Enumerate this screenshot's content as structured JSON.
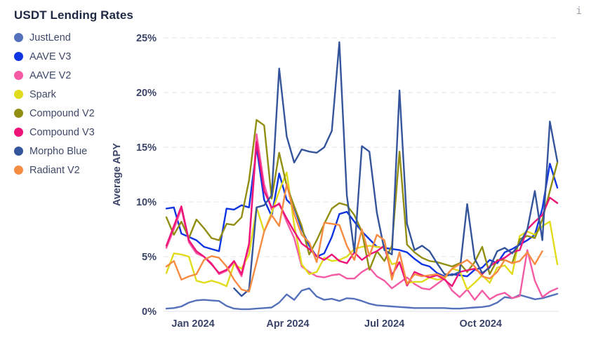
{
  "header": {
    "title": "USDT Lending Rates",
    "info_icon": "i"
  },
  "legend": {
    "items": [
      {
        "label": "JustLend",
        "color": "#5571bb"
      },
      {
        "label": "AAVE V3",
        "color": "#0f35e3"
      },
      {
        "label": "AAVE V2",
        "color": "#f55ba4"
      },
      {
        "label": "Spark",
        "color": "#e0dc1c"
      },
      {
        "label": "Compound V2",
        "color": "#928e12"
      },
      {
        "label": "Compound V3",
        "color": "#ee1379"
      },
      {
        "label": "Morpho Blue",
        "color": "#34549c"
      },
      {
        "label": "Radiant V2",
        "color": "#f68b42"
      }
    ]
  },
  "chart_data": {
    "type": "line",
    "title": "USDT Lending Rates",
    "xlabel": "",
    "ylabel": "Average APY",
    "ylim": [
      0,
      25
    ],
    "grid": "horizontal-dashed",
    "legend_position": "left",
    "x_unit": "weekly (Dec 2023 - Dec 2024)",
    "y_ticks": [
      {
        "value": 25,
        "label": "25%"
      },
      {
        "value": 20,
        "label": "20%"
      },
      {
        "value": 15,
        "label": "15%"
      },
      {
        "value": 10,
        "label": "10%"
      },
      {
        "value": 5,
        "label": "5%"
      },
      {
        "value": 0,
        "label": "0%"
      }
    ],
    "x_ticks": [
      {
        "index": 3.55,
        "label": "Jan 2024"
      },
      {
        "index": 16.15,
        "label": "Apr 2024"
      },
      {
        "index": 29.0,
        "label": "Jul 2024"
      },
      {
        "index": 41.8,
        "label": "Oct 2024"
      }
    ],
    "series": [
      {
        "name": "JustLend",
        "color": "#5571bb",
        "values": [
          0.25,
          0.3,
          0.45,
          0.8,
          1.0,
          1.05,
          1.0,
          0.95,
          0.5,
          0.25,
          0.2,
          0.2,
          0.25,
          0.3,
          0.35,
          0.8,
          1.55,
          1.05,
          1.9,
          2.1,
          1.35,
          1.05,
          1.15,
          0.95,
          1.2,
          1.15,
          0.95,
          0.7,
          0.55,
          0.5,
          0.45,
          0.4,
          0.35,
          0.3,
          0.3,
          0.3,
          0.3,
          0.3,
          0.25,
          0.25,
          0.3,
          0.35,
          0.4,
          0.5,
          0.8,
          1.3,
          1.2,
          1.5,
          1.3,
          1.1,
          1.2,
          1.4,
          1.6
        ]
      },
      {
        "name": "AAVE V3",
        "color": "#0f35e3",
        "values": [
          9.4,
          9.5,
          7.1,
          6.8,
          6.5,
          5.9,
          5.7,
          5.5,
          9.4,
          9.3,
          9.7,
          9.5,
          15.0,
          10.2,
          8.7,
          12.6,
          10.2,
          9.5,
          7.5,
          6.0,
          5.0,
          5.3,
          6.8,
          8.9,
          9.1,
          8.2,
          7.3,
          6.6,
          5.9,
          5.8,
          5.7,
          5.6,
          5.4,
          4.8,
          4.3,
          4.1,
          3.5,
          3.2,
          3.4,
          3.3,
          3.2,
          3.8,
          4.0,
          4.7,
          4.4,
          5.4,
          5.7,
          6.1,
          6.5,
          7.0,
          9.4,
          13.5,
          11.3
        ]
      },
      {
        "name": "AAVE V2",
        "color": "#f55ba4",
        "values": [
          5.8,
          7.5,
          9.4,
          6.3,
          5.3,
          5.0,
          4.4,
          3.4,
          3.7,
          4.5,
          3.2,
          6.0,
          16.2,
          11.6,
          9.3,
          9.9,
          8.2,
          6.7,
          4.1,
          3.6,
          3.2,
          3.1,
          3.3,
          3.4,
          3.0,
          3.0,
          3.6,
          4.0,
          3.2,
          2.8,
          2.1,
          2.6,
          3.1,
          2.5,
          2.1,
          2.0,
          2.5,
          3.0,
          1.9,
          1.3,
          2.0,
          1.05,
          1.9,
          1.1,
          1.5,
          1.7,
          1.2,
          1.4,
          5.6,
          2.8,
          1.3,
          1.8,
          2.1
        ]
      },
      {
        "name": "Spark",
        "color": "#e0dc1c",
        "values": [
          3.5,
          5.3,
          5.2,
          5.0,
          2.8,
          2.6,
          2.8,
          2.6,
          2.3,
          4.3,
          3.9,
          5.2,
          9.5,
          7.3,
          9.0,
          11.0,
          12.7,
          7.9,
          4.3,
          3.4,
          3.6,
          4.9,
          4.6,
          4.7,
          5.0,
          5.7,
          5.9,
          6.0,
          5.9,
          5.8,
          4.3,
          4.5,
          2.6,
          2.7,
          2.7,
          3.1,
          2.9,
          3.0,
          3.9,
          3.7,
          2.0,
          2.6,
          3.3,
          2.6,
          4.0,
          4.2,
          3.4,
          6.9,
          7.3,
          7.0,
          7.8,
          8.2,
          4.3
        ]
      },
      {
        "name": "Compound V2",
        "color": "#928e12",
        "values": [
          8.6,
          7.0,
          8.2,
          6.7,
          8.4,
          7.6,
          6.7,
          6.5,
          8.0,
          7.9,
          8.6,
          12.0,
          17.5,
          17.0,
          10.3,
          14.5,
          11.5,
          9.6,
          7.8,
          5.2,
          6.5,
          8.0,
          9.4,
          9.9,
          9.7,
          8.8,
          7.3,
          3.8,
          5.5,
          4.6,
          6.0,
          14.6,
          6.1,
          5.4,
          4.9,
          4.6,
          4.5,
          4.3,
          4.1,
          4.4,
          3.6,
          4.5,
          5.9,
          3.4,
          4.7,
          4.7,
          4.4,
          6.6,
          6.9,
          6.7,
          8.4,
          11.0,
          13.6
        ]
      },
      {
        "name": "Compound V3",
        "color": "#ee1379",
        "values": [
          6.0,
          7.8,
          9.6,
          6.5,
          5.5,
          5.0,
          4.3,
          3.5,
          3.8,
          4.6,
          3.4,
          6.2,
          15.5,
          11.0,
          9.5,
          9.8,
          8.5,
          7.3,
          6.2,
          5.7,
          5.05,
          4.7,
          5.2,
          4.6,
          4.4,
          5.4,
          4.7,
          5.2,
          5.5,
          6.0,
          3.3,
          4.5,
          2.35,
          3.6,
          3.3,
          3.1,
          3.3,
          2.9,
          2.3,
          3.6,
          3.75,
          3.9,
          3.4,
          4.1,
          4.6,
          4.9,
          5.4,
          5.6,
          7.5,
          8.2,
          8.8,
          10.4,
          9.9
        ]
      },
      {
        "name": "Morpho Blue",
        "color": "#34549c",
        "values": [
          null,
          null,
          null,
          null,
          null,
          null,
          null,
          null,
          null,
          2.1,
          1.4,
          2.0,
          9.5,
          9.7,
          10.6,
          22.2,
          16.0,
          13.6,
          14.8,
          14.6,
          14.5,
          15.0,
          16.5,
          24.6,
          10.6,
          5.4,
          15.1,
          14.6,
          9.0,
          5.6,
          5.2,
          20.2,
          8.0,
          5.6,
          6.0,
          5.5,
          4.4,
          3.4,
          3.3,
          3.6,
          9.8,
          4.8,
          3.5,
          4.0,
          5.5,
          5.8,
          5.3,
          6.2,
          7.5,
          11.0,
          6.5,
          17.35,
          13.7
        ]
      },
      {
        "name": "Radiant V2",
        "color": "#f68b42",
        "values": [
          4.1,
          4.6,
          2.9,
          3.2,
          3.4,
          4.7,
          5.05,
          4.9,
          4.1,
          2.9,
          2.0,
          1.8,
          4.5,
          7.3,
          8.8,
          7.8,
          11.6,
          8.9,
          7.0,
          6.3,
          4.5,
          8.1,
          8.0,
          7.9,
          6.0,
          4.7,
          7.5,
          5.05,
          7.0,
          6.5,
          2.9,
          5.4,
          2.5,
          3.4,
          3.2,
          3.3,
          3.4,
          3.1,
          3.9,
          4.3,
          4.7,
          4.1,
          3.2,
          3.0,
          3.6,
          4.7,
          4.4,
          4.6,
          5.4,
          4.3,
          5.5,
          null,
          null
        ]
      }
    ]
  }
}
